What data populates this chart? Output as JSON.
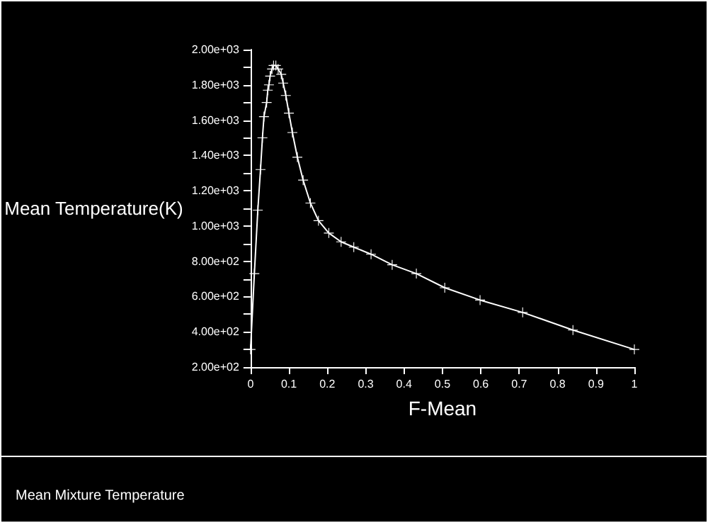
{
  "chart_data": {
    "type": "line",
    "title": "Mean Mixture Temperature",
    "xlabel": "F-Mean",
    "ylabel": "Mean Temperature(K)",
    "x": [
      0,
      0.01,
      0.019,
      0.026,
      0.031,
      0.035,
      0.042,
      0.045,
      0.048,
      0.051,
      0.056,
      0.06,
      0.066,
      0.072,
      0.08,
      0.085,
      0.092,
      0.1,
      0.109,
      0.122,
      0.137,
      0.156,
      0.177,
      0.204,
      0.236,
      0.269,
      0.314,
      0.369,
      0.432,
      0.506,
      0.598,
      0.709,
      0.84,
      1
    ],
    "series": [
      {
        "color": "#ffffff",
        "values": [
          300,
          730,
          1090,
          1320,
          1500,
          1620,
          1700,
          1770,
          1800,
          1850,
          1890,
          1910,
          1910,
          1890,
          1860,
          1810,
          1740,
          1640,
          1530,
          1390,
          1260,
          1130,
          1030,
          960,
          910,
          880,
          840,
          780,
          730,
          650,
          580,
          510,
          410,
          300
        ]
      }
    ],
    "xlim": [
      0,
      1
    ],
    "xticks": [
      0,
      0.1,
      0.2,
      0.3,
      0.4,
      0.5,
      0.6,
      0.7,
      0.8,
      0.9,
      1
    ],
    "ylim": [
      200,
      2000
    ],
    "yticks": [
      {
        "value": 200,
        "label": "2.00e+02"
      },
      {
        "value": 300,
        "label": null
      },
      {
        "value": 400,
        "label": "4.00e+02"
      },
      {
        "value": 500,
        "label": null
      },
      {
        "value": 600,
        "label": "6.00e+02"
      },
      {
        "value": 700,
        "label": null
      },
      {
        "value": 800,
        "label": "8.00e+02"
      },
      {
        "value": 900,
        "label": null
      },
      {
        "value": 1000,
        "label": "1.00e+03"
      },
      {
        "value": 1100,
        "label": null
      },
      {
        "value": 1200,
        "label": "1.20e+03"
      },
      {
        "value": 1300,
        "label": null
      },
      {
        "value": 1400,
        "label": "1.40e+03"
      },
      {
        "value": 1500,
        "label": null
      },
      {
        "value": 1600,
        "label": "1.60e+03"
      },
      {
        "value": 1700,
        "label": null
      },
      {
        "value": 1800,
        "label": "1.80e+03"
      },
      {
        "value": 1900,
        "label": null
      },
      {
        "value": 2000,
        "label": "2.00e+03"
      }
    ],
    "grid": false,
    "marker": "cross",
    "line_style": "solid"
  }
}
